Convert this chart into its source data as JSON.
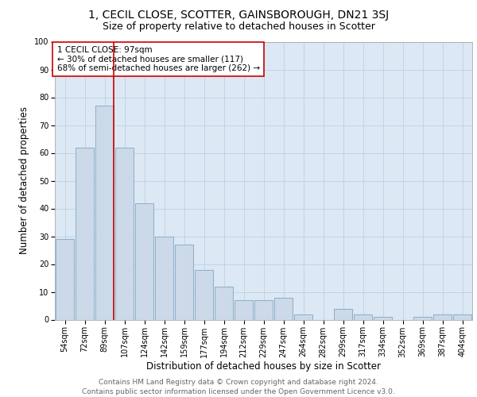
{
  "title": "1, CECIL CLOSE, SCOTTER, GAINSBOROUGH, DN21 3SJ",
  "subtitle": "Size of property relative to detached houses in Scotter",
  "xlabel": "Distribution of detached houses by size in Scotter",
  "ylabel": "Number of detached properties",
  "bar_labels": [
    "54sqm",
    "72sqm",
    "89sqm",
    "107sqm",
    "124sqm",
    "142sqm",
    "159sqm",
    "177sqm",
    "194sqm",
    "212sqm",
    "229sqm",
    "247sqm",
    "264sqm",
    "282sqm",
    "299sqm",
    "317sqm",
    "334sqm",
    "352sqm",
    "369sqm",
    "387sqm",
    "404sqm"
  ],
  "bar_values": [
    29,
    62,
    77,
    62,
    42,
    30,
    27,
    18,
    12,
    7,
    7,
    8,
    2,
    0,
    4,
    2,
    1,
    0,
    1,
    2,
    2
  ],
  "bar_color": "#ccd9e8",
  "bar_edgecolor": "#8aafc8",
  "vline_color": "#cc0000",
  "annotation_line1": "1 CECIL CLOSE: 97sqm",
  "annotation_line2": "← 30% of detached houses are smaller (117)",
  "annotation_line3": "68% of semi-detached houses are larger (262) →",
  "annotation_box_edgecolor": "#cc0000",
  "ylim": [
    0,
    100
  ],
  "yticks": [
    0,
    10,
    20,
    30,
    40,
    50,
    60,
    70,
    80,
    90,
    100
  ],
  "grid_color": "#b8cce0",
  "bg_color": "#dce8f4",
  "footer": "Contains HM Land Registry data © Crown copyright and database right 2024.\nContains public sector information licensed under the Open Government Licence v3.0.",
  "title_fontsize": 10,
  "subtitle_fontsize": 9,
  "xlabel_fontsize": 8.5,
  "ylabel_fontsize": 8.5,
  "tick_fontsize": 7,
  "footer_fontsize": 6.5,
  "annotation_fontsize": 7.5
}
